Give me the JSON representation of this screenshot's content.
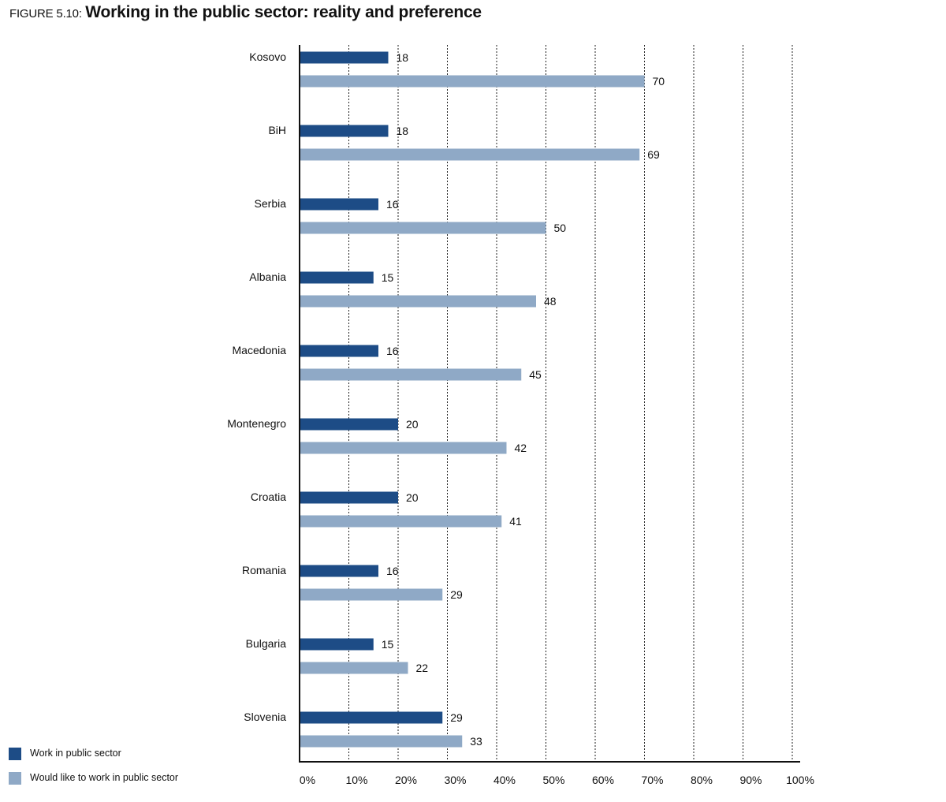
{
  "figure": {
    "label": "FIGURE 5.10:",
    "title": "Working in the public sector: reality and preference"
  },
  "chart_data": {
    "type": "bar",
    "orientation": "horizontal",
    "categories": [
      "Kosovo",
      "BiH",
      "Serbia",
      "Albania",
      "Macedonia",
      "Montenegro",
      "Croatia",
      "Romania",
      "Bulgaria",
      "Slovenia"
    ],
    "series": [
      {
        "name": "Work in public sector",
        "color": "#1d4c86",
        "values": [
          18,
          18,
          16,
          15,
          16,
          20,
          20,
          16,
          15,
          29
        ]
      },
      {
        "name": "Would like to work in public sector",
        "color": "#8fa9c6",
        "values": [
          70,
          69,
          50,
          48,
          45,
          42,
          41,
          29,
          22,
          33
        ]
      }
    ],
    "xlim": [
      0,
      100
    ],
    "xticks": [
      0,
      10,
      20,
      30,
      40,
      50,
      60,
      70,
      80,
      90,
      100
    ],
    "xtick_labels": [
      "0%",
      "10%",
      "20%",
      "30%",
      "40%",
      "50%",
      "60%",
      "70%",
      "80%",
      "90%",
      "100%"
    ],
    "grid": "vertical dotted",
    "legend_position": "bottom-left",
    "xlabel": "",
    "ylabel": ""
  }
}
